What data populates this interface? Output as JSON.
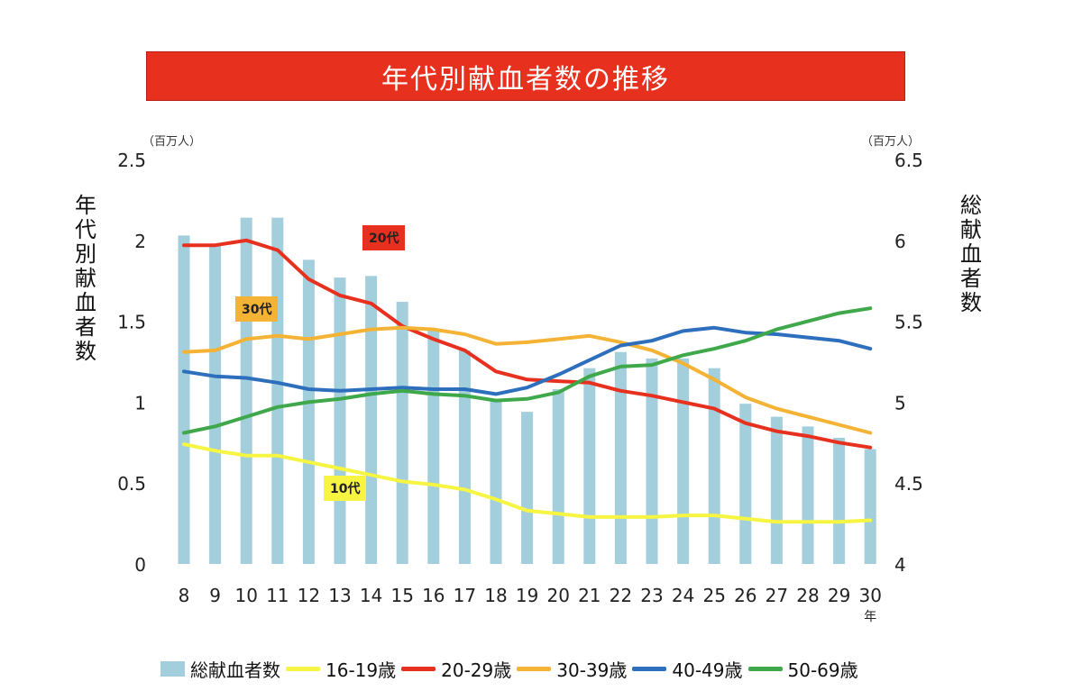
{
  "title": "年代別献血者数の推移",
  "left_unit": "（百万人）",
  "right_unit": "（百万人）",
  "left_axis_label": "年代別献血者数",
  "right_axis_label": "総献血者数",
  "x_suffix": "年",
  "annotations": [
    {
      "text": "20代",
      "bg": "#e8301e",
      "color": "#222222"
    },
    {
      "text": "30代",
      "bg": "#f5b335",
      "color": "#222222"
    },
    {
      "text": "10代",
      "bg": "#f5f542",
      "color": "#222222"
    }
  ],
  "legend": [
    {
      "label": "総献血者数",
      "type": "bar",
      "color": "#a3cedb"
    },
    {
      "label": "16-19歳",
      "type": "line",
      "color": "#f5f542"
    },
    {
      "label": "20-29歳",
      "type": "line",
      "color": "#e8301e"
    },
    {
      "label": "30-39歳",
      "type": "line",
      "color": "#f5b335"
    },
    {
      "label": "40-49歳",
      "type": "line",
      "color": "#2e6fbd"
    },
    {
      "label": "50-69歳",
      "type": "line",
      "color": "#3fa84a"
    }
  ],
  "chart_data": {
    "type": "bar+line",
    "title": "年代別献血者数の推移",
    "categories": [
      "8",
      "9",
      "10",
      "11",
      "12",
      "13",
      "14",
      "15",
      "16",
      "17",
      "18",
      "19",
      "20",
      "21",
      "22",
      "23",
      "24",
      "25",
      "26",
      "27",
      "28",
      "29",
      "30"
    ],
    "xlabel": "年",
    "y_left": {
      "label": "年代別献血者数",
      "unit": "（百万人）",
      "lim": [
        0,
        2.5
      ],
      "ticks": [
        "0",
        "0.5",
        "1",
        "1.5",
        "2",
        "2.5"
      ]
    },
    "y_right": {
      "label": "総献血者数",
      "unit": "（百万人）",
      "lim": [
        4,
        6.5
      ],
      "ticks": [
        "4",
        "4.5",
        "5",
        "5.5",
        "6",
        "6.5"
      ]
    },
    "bar_series": {
      "name": "総献血者数",
      "axis": "right",
      "color": "#a3cedb",
      "values": [
        6.03,
        5.97,
        6.14,
        6.14,
        5.88,
        5.77,
        5.78,
        5.62,
        5.45,
        5.32,
        5.01,
        4.94,
        5.08,
        5.21,
        5.31,
        5.27,
        5.27,
        5.21,
        4.99,
        4.91,
        4.85,
        4.78,
        4.71
      ]
    },
    "series": [
      {
        "name": "16-19歳",
        "axis": "left",
        "color": "#f5f542",
        "values": [
          0.74,
          0.7,
          0.67,
          0.67,
          0.63,
          0.59,
          0.55,
          0.51,
          0.49,
          0.46,
          0.4,
          0.33,
          0.31,
          0.29,
          0.29,
          0.29,
          0.3,
          0.3,
          0.28,
          0.26,
          0.26,
          0.26,
          0.27
        ]
      },
      {
        "name": "20-29歳",
        "axis": "left",
        "color": "#e8301e",
        "values": [
          1.97,
          1.97,
          2.0,
          1.94,
          1.76,
          1.66,
          1.61,
          1.47,
          1.39,
          1.32,
          1.19,
          1.14,
          1.13,
          1.12,
          1.07,
          1.04,
          1.0,
          0.96,
          0.87,
          0.82,
          0.79,
          0.75,
          0.72
        ]
      },
      {
        "name": "30-39歳",
        "axis": "left",
        "color": "#f5b335",
        "values": [
          1.31,
          1.32,
          1.39,
          1.41,
          1.39,
          1.42,
          1.45,
          1.46,
          1.45,
          1.42,
          1.36,
          1.37,
          1.39,
          1.41,
          1.37,
          1.32,
          1.24,
          1.14,
          1.03,
          0.96,
          0.91,
          0.86,
          0.81
        ]
      },
      {
        "name": "40-49歳",
        "axis": "left",
        "color": "#2e6fbd",
        "values": [
          1.19,
          1.16,
          1.15,
          1.12,
          1.08,
          1.07,
          1.08,
          1.09,
          1.08,
          1.08,
          1.05,
          1.09,
          1.17,
          1.26,
          1.35,
          1.38,
          1.44,
          1.46,
          1.43,
          1.42,
          1.4,
          1.38,
          1.33
        ]
      },
      {
        "name": "50-69歳",
        "axis": "left",
        "color": "#3fa84a",
        "values": [
          0.81,
          0.85,
          0.91,
          0.97,
          1.0,
          1.02,
          1.05,
          1.07,
          1.05,
          1.04,
          1.01,
          1.02,
          1.06,
          1.16,
          1.22,
          1.23,
          1.29,
          1.33,
          1.38,
          1.45,
          1.5,
          1.55,
          1.58
        ]
      }
    ],
    "grid": false,
    "legend_position": "bottom"
  }
}
